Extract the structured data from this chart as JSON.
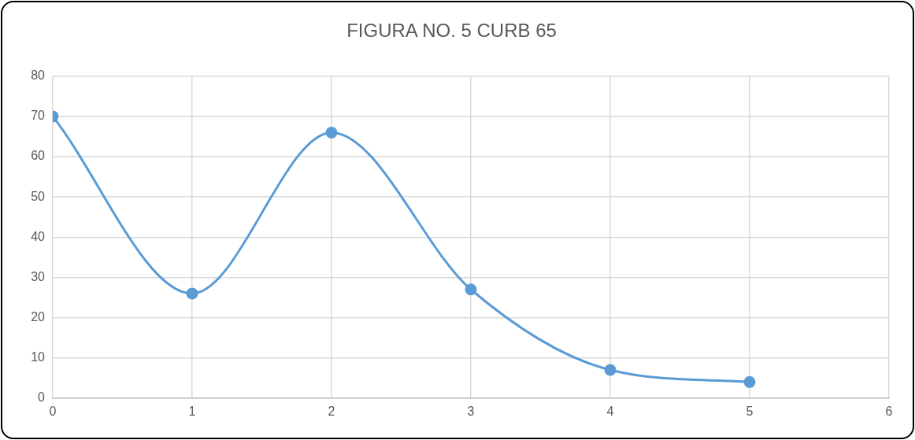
{
  "chart_data": {
    "type": "line",
    "title": "FIGURA NO. 5 CURB 65",
    "x": [
      0,
      1,
      2,
      3,
      4,
      5
    ],
    "series": [
      {
        "color": "#5b9bd5",
        "values": [
          70,
          26,
          66,
          27,
          7,
          4
        ]
      }
    ],
    "xlim": [
      0,
      6
    ],
    "xticks": [
      0,
      1,
      2,
      3,
      4,
      5,
      6
    ],
    "ylim": [
      0,
      80
    ],
    "yticks": [
      0,
      10,
      20,
      30,
      40,
      50,
      60,
      70,
      80
    ],
    "grid": true,
    "legend": false,
    "marker": "circle",
    "line_style": "solid"
  }
}
